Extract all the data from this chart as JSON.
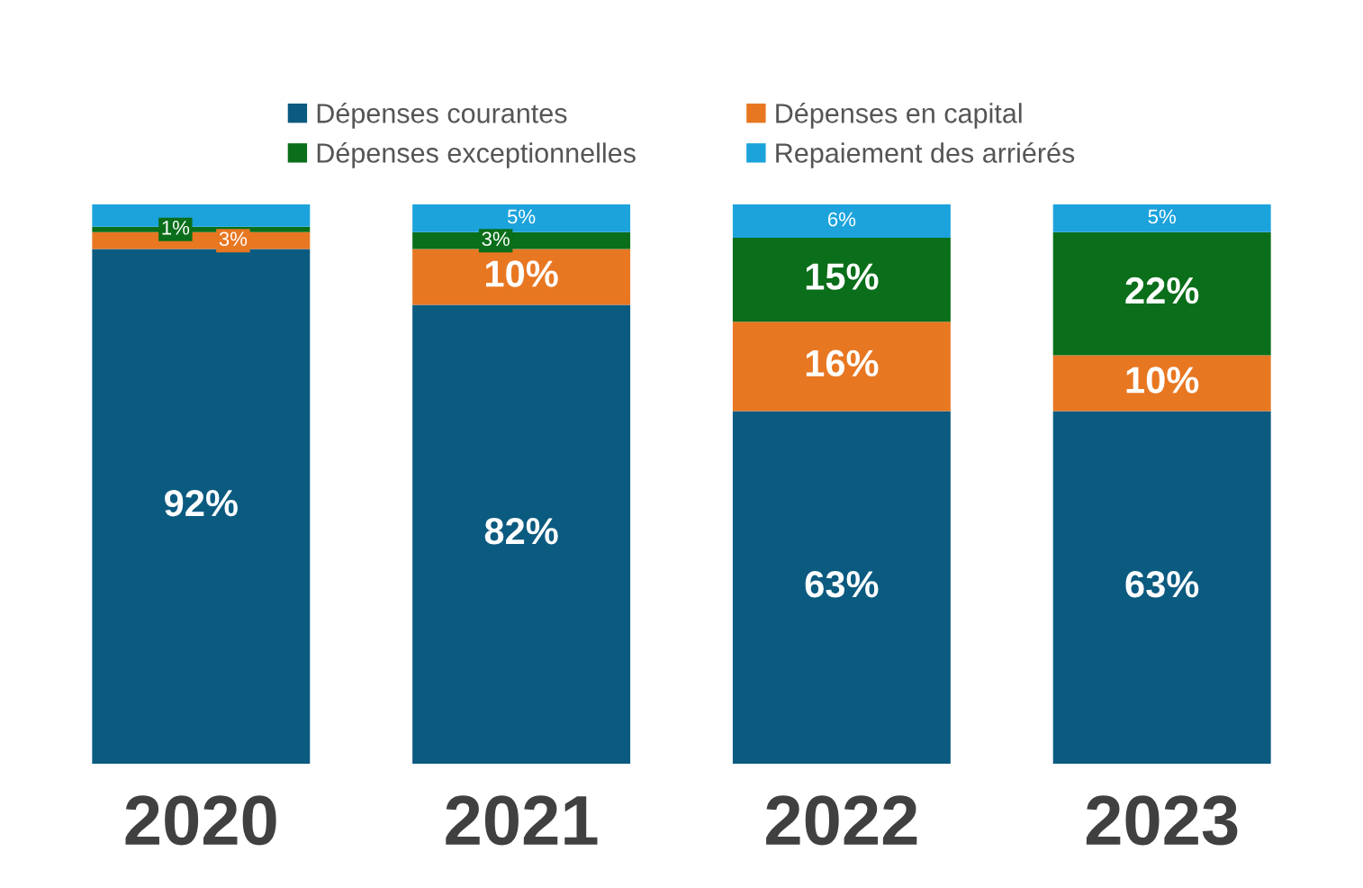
{
  "chart_data": {
    "type": "bar",
    "stacked": true,
    "categories": [
      "2020",
      "2021",
      "2022",
      "2023"
    ],
    "legend": "top",
    "grid": false,
    "tick_labels": "x",
    "series": [
      {
        "name": "Dépenses courantes",
        "color": "#0b5a80",
        "values": [
          92,
          82,
          63,
          63
        ],
        "value_labels": [
          "92%",
          "82%",
          "63%",
          "63%"
        ]
      },
      {
        "name": "Dépenses en capital",
        "color": "#e87722",
        "values": [
          3,
          10,
          16,
          10
        ],
        "value_labels": [
          "3%",
          "10%",
          "16%",
          "10%"
        ]
      },
      {
        "name": "Dépenses exceptionnelles",
        "color": "#0a6e1a",
        "values": [
          1,
          3,
          15,
          22
        ],
        "value_labels": [
          "1%",
          "3%",
          "15%",
          "22%"
        ]
      },
      {
        "name": "Repaiement des arriérés",
        "color": "#1ca3dc",
        "values": [
          4,
          5,
          6,
          5
        ],
        "value_labels": [
          null,
          "5%",
          "6%",
          "5%"
        ]
      }
    ]
  }
}
